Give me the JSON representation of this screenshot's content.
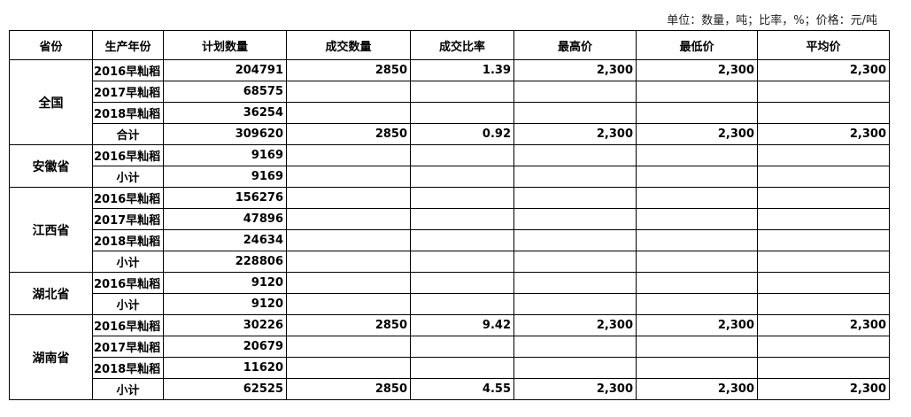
{
  "unit_note": "单位：数量，吨；比率，%；价格：元/吨",
  "headers": [
    "省份",
    "生产年份",
    "计划数量",
    "成交数量",
    "成交比率",
    "最高价",
    "最低价",
    "平均价"
  ],
  "groups": [
    {
      "province": "全国",
      "rows": [
        {
          "year": "2016早籼稻",
          "plan": "204791",
          "deal": "2850",
          "rate": "1.39",
          "max": "2,300",
          "min": "2,300",
          "avg": "2,300"
        },
        {
          "year": "2017早籼稻",
          "plan": "68575",
          "deal": "",
          "rate": "",
          "max": "",
          "min": "",
          "avg": ""
        },
        {
          "year": "2018早籼稻",
          "plan": "36254",
          "deal": "",
          "rate": "",
          "max": "",
          "min": "",
          "avg": ""
        },
        {
          "year": "合计",
          "plan": "309620",
          "deal": "2850",
          "rate": "0.92",
          "max": "2,300",
          "min": "2,300",
          "avg": "2,300"
        }
      ]
    },
    {
      "province": "安徽省",
      "rows": [
        {
          "year": "2016早籼稻",
          "plan": "9169",
          "deal": "",
          "rate": "",
          "max": "",
          "min": "",
          "avg": ""
        },
        {
          "year": "小计",
          "plan": "9169",
          "deal": "",
          "rate": "",
          "max": "",
          "min": "",
          "avg": ""
        }
      ]
    },
    {
      "province": "江西省",
      "rows": [
        {
          "year": "2016早籼稻",
          "plan": "156276",
          "deal": "",
          "rate": "",
          "max": "",
          "min": "",
          "avg": ""
        },
        {
          "year": "2017早籼稻",
          "plan": "47896",
          "deal": "",
          "rate": "",
          "max": "",
          "min": "",
          "avg": ""
        },
        {
          "year": "2018早籼稻",
          "plan": "24634",
          "deal": "",
          "rate": "",
          "max": "",
          "min": "",
          "avg": ""
        },
        {
          "year": "小计",
          "plan": "228806",
          "deal": "",
          "rate": "",
          "max": "",
          "min": "",
          "avg": ""
        }
      ]
    },
    {
      "province": "湖北省",
      "rows": [
        {
          "year": "2016早籼稻",
          "plan": "9120",
          "deal": "",
          "rate": "",
          "max": "",
          "min": "",
          "avg": ""
        },
        {
          "year": "小计",
          "plan": "9120",
          "deal": "",
          "rate": "",
          "max": "",
          "min": "",
          "avg": ""
        }
      ]
    },
    {
      "province": "湖南省",
      "rows": [
        {
          "year": "2016早籼稻",
          "plan": "30226",
          "deal": "2850",
          "rate": "9.42",
          "max": "2,300",
          "min": "2,300",
          "avg": "2,300"
        },
        {
          "year": "2017早籼稻",
          "plan": "20679",
          "deal": "",
          "rate": "",
          "max": "",
          "min": "",
          "avg": ""
        },
        {
          "year": "2018早籼稻",
          "plan": "11620",
          "deal": "",
          "rate": "",
          "max": "",
          "min": "",
          "avg": ""
        },
        {
          "year": "小计",
          "plan": "62525",
          "deal": "2850",
          "rate": "4.55",
          "max": "2,300",
          "min": "2,300",
          "avg": "2,300"
        }
      ]
    }
  ]
}
